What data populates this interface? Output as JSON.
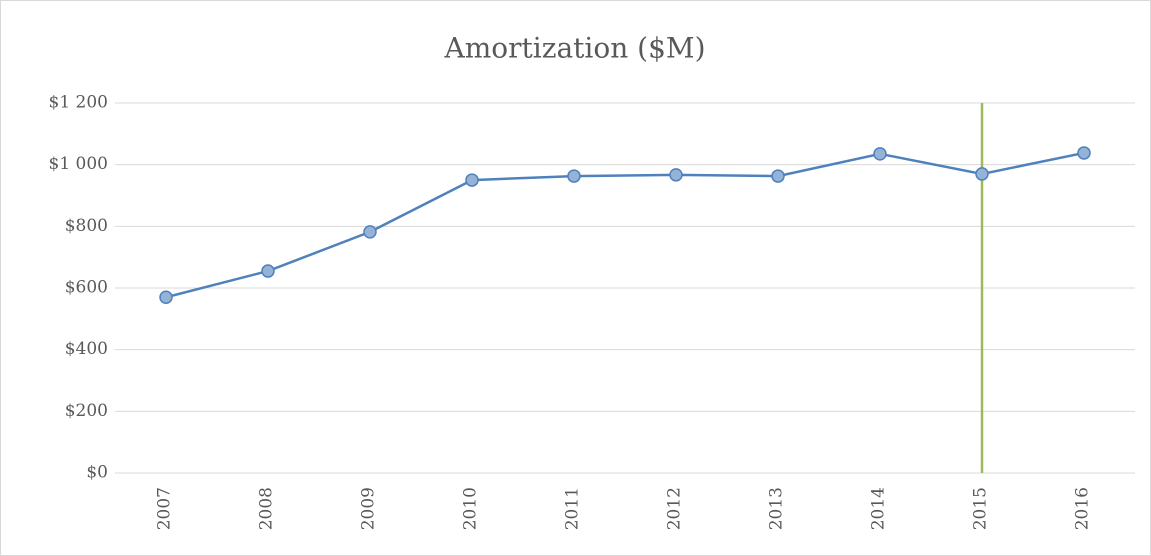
{
  "chart_data": {
    "type": "line",
    "title": "Amortization ($M)",
    "categories": [
      "2007",
      "2008",
      "2009",
      "2010",
      "2011",
      "2012",
      "2013",
      "2014",
      "2015",
      "2016"
    ],
    "series": [
      {
        "name": "Amortization",
        "color": "#4f81bd",
        "marker_fill": "#95b3d7",
        "values": [
          570,
          655,
          782,
          950,
          963,
          967,
          963,
          1035,
          970,
          1038
        ]
      }
    ],
    "ylim": [
      0,
      1200
    ],
    "yticks": [
      {
        "value": 0,
        "label": "$0"
      },
      {
        "value": 200,
        "label": "$200"
      },
      {
        "value": 400,
        "label": "$400"
      },
      {
        "value": 600,
        "label": "$600"
      },
      {
        "value": 800,
        "label": "$800"
      },
      {
        "value": 1000,
        "label": "$1 000"
      },
      {
        "value": 1200,
        "label": "$1 200"
      }
    ],
    "grid": true,
    "legend": false,
    "highlight": {
      "category_index": 8,
      "color": "#9bbb59"
    }
  }
}
